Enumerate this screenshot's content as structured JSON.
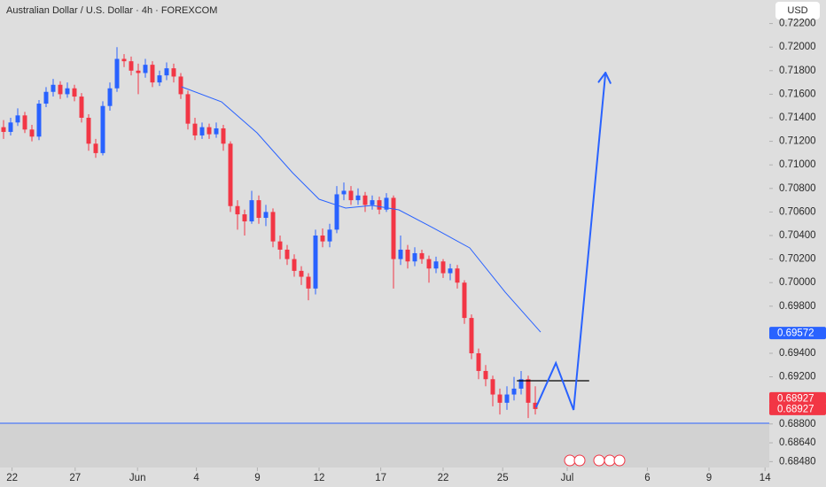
{
  "chart_data": {
    "type": "candlestick",
    "title": "Australian Dollar / U.S. Dollar · 4h · FOREXCOM",
    "currency": "USD",
    "up_color": "#2962ff",
    "down_color": "#f23645",
    "xlim": [
      -0.5,
      108
    ],
    "ylim": [
      0.6843,
      0.724
    ],
    "xticks": [
      {
        "value": 1.2,
        "label": "22"
      },
      {
        "value": 10.1,
        "label": "27"
      },
      {
        "value": 18.9,
        "label": "Jun"
      },
      {
        "value": 27.2,
        "label": "4"
      },
      {
        "value": 35.8,
        "label": "9"
      },
      {
        "value": 44.5,
        "label": "12"
      },
      {
        "value": 53.2,
        "label": "17"
      },
      {
        "value": 62,
        "label": "22"
      },
      {
        "value": 70.4,
        "label": "25"
      },
      {
        "value": 79.5,
        "label": "Jul"
      },
      {
        "value": 90.8,
        "label": "6"
      },
      {
        "value": 99.5,
        "label": "9"
      },
      {
        "value": 107.4,
        "label": "14"
      }
    ],
    "yticks": [
      {
        "value": 0.722,
        "label": "0.72200"
      },
      {
        "value": 0.72,
        "label": "0.72000"
      },
      {
        "value": 0.718,
        "label": "0.71800"
      },
      {
        "value": 0.716,
        "label": "0.71600"
      },
      {
        "value": 0.714,
        "label": "0.71400"
      },
      {
        "value": 0.712,
        "label": "0.71200"
      },
      {
        "value": 0.71,
        "label": "0.71000"
      },
      {
        "value": 0.708,
        "label": "0.70800"
      },
      {
        "value": 0.706,
        "label": "0.70600"
      },
      {
        "value": 0.704,
        "label": "0.70400"
      },
      {
        "value": 0.702,
        "label": "0.70200"
      },
      {
        "value": 0.7,
        "label": "0.70000"
      },
      {
        "value": 0.698,
        "label": "0.69800"
      },
      {
        "value": 0.694,
        "label": "0.69400"
      },
      {
        "value": 0.692,
        "label": "0.69200"
      },
      {
        "value": 0.688,
        "label": "0.68800"
      },
      {
        "value": 0.6864,
        "label": "0.68640"
      },
      {
        "value": 0.6848,
        "label": "0.68480"
      }
    ],
    "open": [
      0.7132,
      0.7128,
      0.7136,
      0.7142,
      0.713,
      0.7124,
      0.7152,
      0.7162,
      0.7168,
      0.716,
      0.7165,
      0.7158,
      0.714,
      0.7118,
      0.711,
      0.715,
      0.7165,
      0.719,
      0.7188,
      0.718,
      0.7178,
      0.7185,
      0.717,
      0.7176,
      0.7182,
      0.7175,
      0.716,
      0.7135,
      0.7125,
      0.7132,
      0.7126,
      0.7131,
      0.7118,
      0.7065,
      0.7058,
      0.7052,
      0.707,
      0.7055,
      0.706,
      0.7035,
      0.7028,
      0.702,
      0.701,
      0.7005,
      0.6995,
      0.704,
      0.7035,
      0.7045,
      0.7075,
      0.7078,
      0.707,
      0.7074,
      0.7066,
      0.707,
      0.7062,
      0.7072,
      0.702,
      0.7028,
      0.7018,
      0.7025,
      0.702,
      0.7012,
      0.7018,
      0.7008,
      0.7012,
      0.7,
      0.697,
      0.694,
      0.6925,
      0.6918,
      0.6905,
      0.6898,
      0.6905,
      0.691,
      0.6918,
      0.6898
    ],
    "high": [
      0.7138,
      0.714,
      0.7148,
      0.7145,
      0.7134,
      0.7155,
      0.7166,
      0.7173,
      0.7171,
      0.717,
      0.7168,
      0.7161,
      0.7143,
      0.7122,
      0.7154,
      0.717,
      0.72,
      0.7194,
      0.7192,
      0.7186,
      0.719,
      0.7188,
      0.718,
      0.7187,
      0.7186,
      0.7178,
      0.7163,
      0.714,
      0.7136,
      0.7135,
      0.7136,
      0.7134,
      0.712,
      0.707,
      0.7062,
      0.7078,
      0.7074,
      0.7066,
      0.7063,
      0.704,
      0.7032,
      0.7024,
      0.7014,
      0.7008,
      0.7045,
      0.7046,
      0.705,
      0.7082,
      0.7085,
      0.7082,
      0.708,
      0.7077,
      0.7074,
      0.7073,
      0.7076,
      0.7074,
      0.704,
      0.7032,
      0.703,
      0.7028,
      0.7023,
      0.7022,
      0.702,
      0.7016,
      0.7015,
      0.7002,
      0.6973,
      0.6944,
      0.693,
      0.6921,
      0.691,
      0.6912,
      0.692,
      0.6925,
      0.6921,
      0.6912
    ],
    "low": [
      0.7122,
      0.7125,
      0.7133,
      0.7127,
      0.712,
      0.7121,
      0.7149,
      0.7158,
      0.7156,
      0.7157,
      0.7154,
      0.7136,
      0.7112,
      0.7106,
      0.7108,
      0.7146,
      0.7162,
      0.7183,
      0.7176,
      0.716,
      0.7174,
      0.7166,
      0.7167,
      0.7172,
      0.717,
      0.7156,
      0.713,
      0.7121,
      0.7122,
      0.7122,
      0.7123,
      0.7112,
      0.706,
      0.7045,
      0.704,
      0.705,
      0.705,
      0.7048,
      0.703,
      0.702,
      0.7015,
      0.7005,
      0.6998,
      0.6985,
      0.699,
      0.703,
      0.703,
      0.7042,
      0.707,
      0.7066,
      0.7066,
      0.706,
      0.7062,
      0.7058,
      0.706,
      0.6995,
      0.7015,
      0.7012,
      0.7014,
      0.7016,
      0.7,
      0.7008,
      0.7004,
      0.7002,
      0.6995,
      0.6965,
      0.6935,
      0.6918,
      0.6912,
      0.6895,
      0.6888,
      0.6892,
      0.69,
      0.6905,
      0.6885,
      0.6888
    ],
    "close": [
      0.7128,
      0.7136,
      0.7142,
      0.713,
      0.7124,
      0.7152,
      0.7162,
      0.7168,
      0.716,
      0.7165,
      0.7158,
      0.714,
      0.7118,
      0.711,
      0.715,
      0.7165,
      0.719,
      0.7188,
      0.718,
      0.7178,
      0.7185,
      0.717,
      0.7176,
      0.7182,
      0.7175,
      0.716,
      0.7135,
      0.7125,
      0.7132,
      0.7126,
      0.7131,
      0.7118,
      0.7065,
      0.7058,
      0.7052,
      0.707,
      0.7055,
      0.706,
      0.7035,
      0.7028,
      0.702,
      0.701,
      0.7005,
      0.6995,
      0.704,
      0.7035,
      0.7045,
      0.7075,
      0.7078,
      0.707,
      0.7074,
      0.7066,
      0.707,
      0.7062,
      0.7072,
      0.702,
      0.7028,
      0.7018,
      0.7025,
      0.702,
      0.7012,
      0.7018,
      0.7008,
      0.7012,
      0.7,
      0.697,
      0.694,
      0.6925,
      0.6918,
      0.6905,
      0.6898,
      0.6905,
      0.691,
      0.6918,
      0.6898,
      0.68927
    ],
    "ma": {
      "color": "#2962ff",
      "x": [
        25.1,
        30.75,
        35.75,
        40.75,
        44.5,
        48.25,
        52,
        55.75,
        60.75,
        65.75,
        70.75,
        75.75
      ],
      "values": [
        0.71663,
        0.71535,
        0.71272,
        0.70934,
        0.70708,
        0.70633,
        0.70656,
        0.70618,
        0.7046,
        0.70295,
        0.69919,
        0.6958
      ]
    },
    "projection": {
      "color": "#2962ff",
      "x": [
        75.1,
        77.9,
        80.4,
        84.9
      ],
      "values": [
        0.68941,
        0.69317,
        0.68919,
        0.71783
      ]
    },
    "level": {
      "color": "#000000",
      "x": [
        72.4,
        82.6
      ],
      "value": 0.69167
    },
    "support": {
      "color": "#2962ff",
      "value": 0.68806
    },
    "price_tags": [
      {
        "value": 0.69572,
        "label": "0.69572",
        "color": "#2962ff"
      },
      {
        "value": 0.68927,
        "label": "0.68927",
        "color": "#f23645"
      },
      {
        "value": 0.68927,
        "label": "0.68927",
        "color": "#f23645"
      }
    ]
  }
}
